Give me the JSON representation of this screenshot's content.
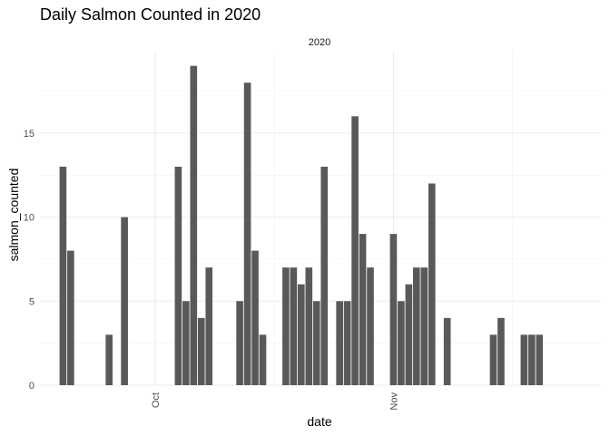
{
  "chart_data": {
    "type": "bar",
    "title": "Daily Salmon Counted in 2020",
    "facet": "2020",
    "xlabel": "date",
    "ylabel": "salmon_counted",
    "x_range": [
      "2020-09-16",
      "2020-11-28"
    ],
    "ylim": [
      0,
      19.9
    ],
    "y_ticks": [
      0,
      5,
      10,
      15
    ],
    "x_ticks": [
      {
        "date": "2020-10-01",
        "label": "Oct"
      },
      {
        "date": "2020-11-01",
        "label": "Nov"
      }
    ],
    "bar_color": "#595959",
    "grid": true,
    "series": [
      {
        "x": [
          "2020-09-19",
          "2020-09-20",
          "2020-09-25",
          "2020-09-27",
          "2020-10-04",
          "2020-10-05",
          "2020-10-06",
          "2020-10-07",
          "2020-10-08",
          "2020-10-12",
          "2020-10-13",
          "2020-10-14",
          "2020-10-15",
          "2020-10-18",
          "2020-10-19",
          "2020-10-20",
          "2020-10-21",
          "2020-10-22",
          "2020-10-23",
          "2020-10-25",
          "2020-10-26",
          "2020-10-27",
          "2020-10-28",
          "2020-10-29",
          "2020-11-01",
          "2020-11-02",
          "2020-11-03",
          "2020-11-04",
          "2020-11-05",
          "2020-11-06",
          "2020-11-08",
          "2020-11-14",
          "2020-11-15",
          "2020-11-18",
          "2020-11-19",
          "2020-11-20"
        ],
        "values": [
          13,
          8,
          3,
          10,
          13,
          5,
          19,
          4,
          7,
          5,
          18,
          8,
          3,
          7,
          7,
          6,
          7,
          5,
          13,
          5,
          5,
          16,
          9,
          7,
          9,
          5,
          6,
          7,
          7,
          12,
          4,
          3,
          4,
          3,
          3,
          3
        ]
      }
    ]
  }
}
